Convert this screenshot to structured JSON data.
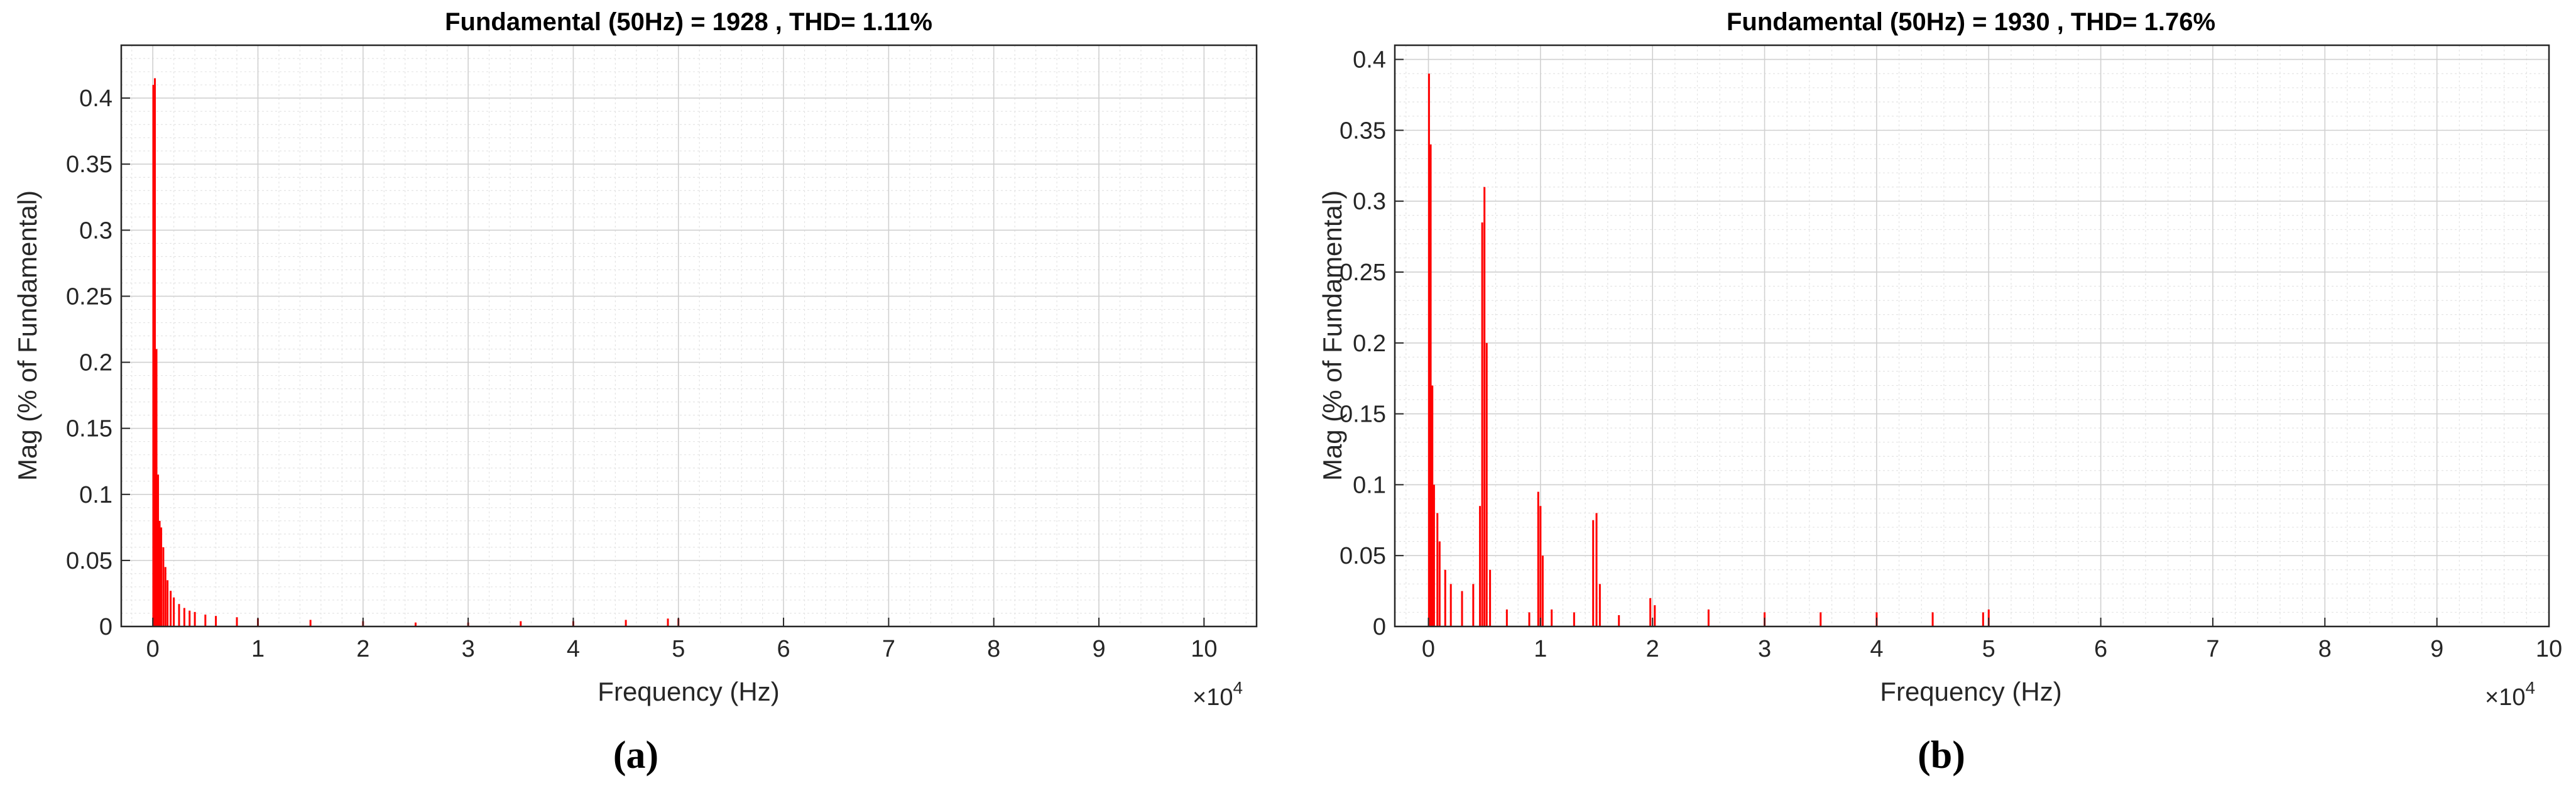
{
  "chart_data": [
    {
      "type": "bar",
      "panel_label": "(a)",
      "title": "Fundamental (50Hz) = 1928 , THD= 1.11%",
      "xlabel": "Frequency (Hz)",
      "ylabel": "Mag (% of Fundamental)",
      "x_multiplier": "×10",
      "x_multiplier_exp": "4",
      "xlim": [
        -0.3,
        10.5
      ],
      "ylim": [
        0,
        0.44
      ],
      "xticks": [
        0,
        1,
        2,
        3,
        4,
        5,
        6,
        7,
        8,
        9,
        10
      ],
      "yticks": [
        0,
        0.05,
        0.1,
        0.15,
        0.2,
        0.25,
        0.3,
        0.35,
        0.4
      ],
      "grid": true,
      "minor_grid": true,
      "color": "#ff0000",
      "series": [
        {
          "x": [
            0.005,
            0.02,
            0.035,
            0.05,
            0.065,
            0.08,
            0.1,
            0.12,
            0.14,
            0.17,
            0.2,
            0.25,
            0.3,
            0.35,
            0.4,
            0.5,
            0.6,
            0.8,
            1.0,
            1.5,
            2.0,
            2.5,
            3.0,
            3.5,
            4.0,
            4.5,
            4.9,
            5.0
          ],
          "y": [
            0.41,
            0.415,
            0.21,
            0.115,
            0.08,
            0.075,
            0.06,
            0.045,
            0.035,
            0.027,
            0.022,
            0.017,
            0.014,
            0.012,
            0.011,
            0.009,
            0.008,
            0.007,
            0.006,
            0.005,
            0.004,
            0.003,
            0.003,
            0.004,
            0.004,
            0.005,
            0.006,
            0.006
          ]
        }
      ]
    },
    {
      "type": "bar",
      "panel_label": "(b)",
      "title": "Fundamental (50Hz) = 1930 , THD= 1.76%",
      "xlabel": "Frequency (Hz)",
      "ylabel": "Mag (% of Fundamental)",
      "x_multiplier": "×10",
      "x_multiplier_exp": "4",
      "xlim": [
        -0.3,
        10
      ],
      "ylim": [
        0,
        0.41
      ],
      "xticks": [
        0,
        1,
        2,
        3,
        4,
        5,
        6,
        7,
        8,
        9,
        10
      ],
      "yticks": [
        0,
        0.05,
        0.1,
        0.15,
        0.2,
        0.25,
        0.3,
        0.35,
        0.4
      ],
      "grid": true,
      "minor_grid": true,
      "color": "#ff0000",
      "series": [
        {
          "x": [
            0.005,
            0.02,
            0.035,
            0.05,
            0.08,
            0.1,
            0.15,
            0.2,
            0.3,
            0.4,
            0.46,
            0.48,
            0.5,
            0.52,
            0.55,
            0.7,
            0.9,
            0.98,
            1.0,
            1.02,
            1.1,
            1.3,
            1.47,
            1.5,
            1.53,
            1.7,
            1.98,
            2.02,
            2.5,
            3.0,
            3.5,
            4.0,
            4.5,
            4.95,
            5.0
          ],
          "y": [
            0.39,
            0.34,
            0.17,
            0.1,
            0.08,
            0.06,
            0.04,
            0.03,
            0.025,
            0.03,
            0.085,
            0.285,
            0.31,
            0.2,
            0.04,
            0.012,
            0.01,
            0.095,
            0.085,
            0.05,
            0.012,
            0.01,
            0.075,
            0.08,
            0.03,
            0.008,
            0.02,
            0.015,
            0.012,
            0.01,
            0.01,
            0.01,
            0.01,
            0.01,
            0.012
          ]
        }
      ]
    }
  ]
}
